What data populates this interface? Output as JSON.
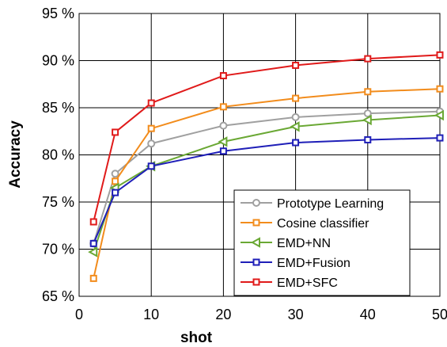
{
  "chart_data": {
    "type": "line",
    "title": "",
    "xlabel": "shot",
    "ylabel": "Accuracy",
    "x_ticks": [
      0,
      10,
      20,
      30,
      40,
      50
    ],
    "y_ticks": [
      65,
      70,
      75,
      80,
      85,
      90,
      95
    ],
    "y_tick_labels": [
      "65 %",
      "70 %",
      "75 %",
      "80 %",
      "85 %",
      "90 %",
      "95 %"
    ],
    "xlim": [
      0,
      50
    ],
    "ylim": [
      65,
      95
    ],
    "grid": true,
    "legend_position": "bottom-right",
    "series": [
      {
        "name": "Prototype Learning",
        "color": "#a0a0a0",
        "marker": "circle",
        "x": [
          2,
          5,
          10,
          20,
          30,
          40,
          50
        ],
        "y": [
          70.6,
          78.0,
          81.2,
          83.1,
          84.0,
          84.4,
          84.6
        ]
      },
      {
        "name": "Cosine classifier",
        "color": "#f28c1c",
        "marker": "square",
        "x": [
          2,
          5,
          10,
          20,
          30,
          40,
          50
        ],
        "y": [
          66.9,
          77.2,
          82.8,
          85.1,
          86.0,
          86.7,
          87.0
        ]
      },
      {
        "name": "EMD+NN",
        "color": "#6aa834",
        "marker": "triangle-left",
        "x": [
          2,
          5,
          10,
          20,
          30,
          40,
          50
        ],
        "y": [
          69.7,
          76.5,
          78.8,
          81.4,
          83.0,
          83.7,
          84.2
        ]
      },
      {
        "name": "EMD+Fusion",
        "color": "#1f1fb8",
        "marker": "square",
        "x": [
          2,
          5,
          10,
          20,
          30,
          40,
          50
        ],
        "y": [
          70.6,
          76.0,
          78.8,
          80.4,
          81.3,
          81.6,
          81.8
        ]
      },
      {
        "name": "EMD+SFC",
        "color": "#e01a1a",
        "marker": "square",
        "x": [
          2,
          5,
          10,
          20,
          30,
          40,
          50
        ],
        "y": [
          72.9,
          82.4,
          85.5,
          88.4,
          89.5,
          90.2,
          90.6
        ]
      }
    ]
  }
}
